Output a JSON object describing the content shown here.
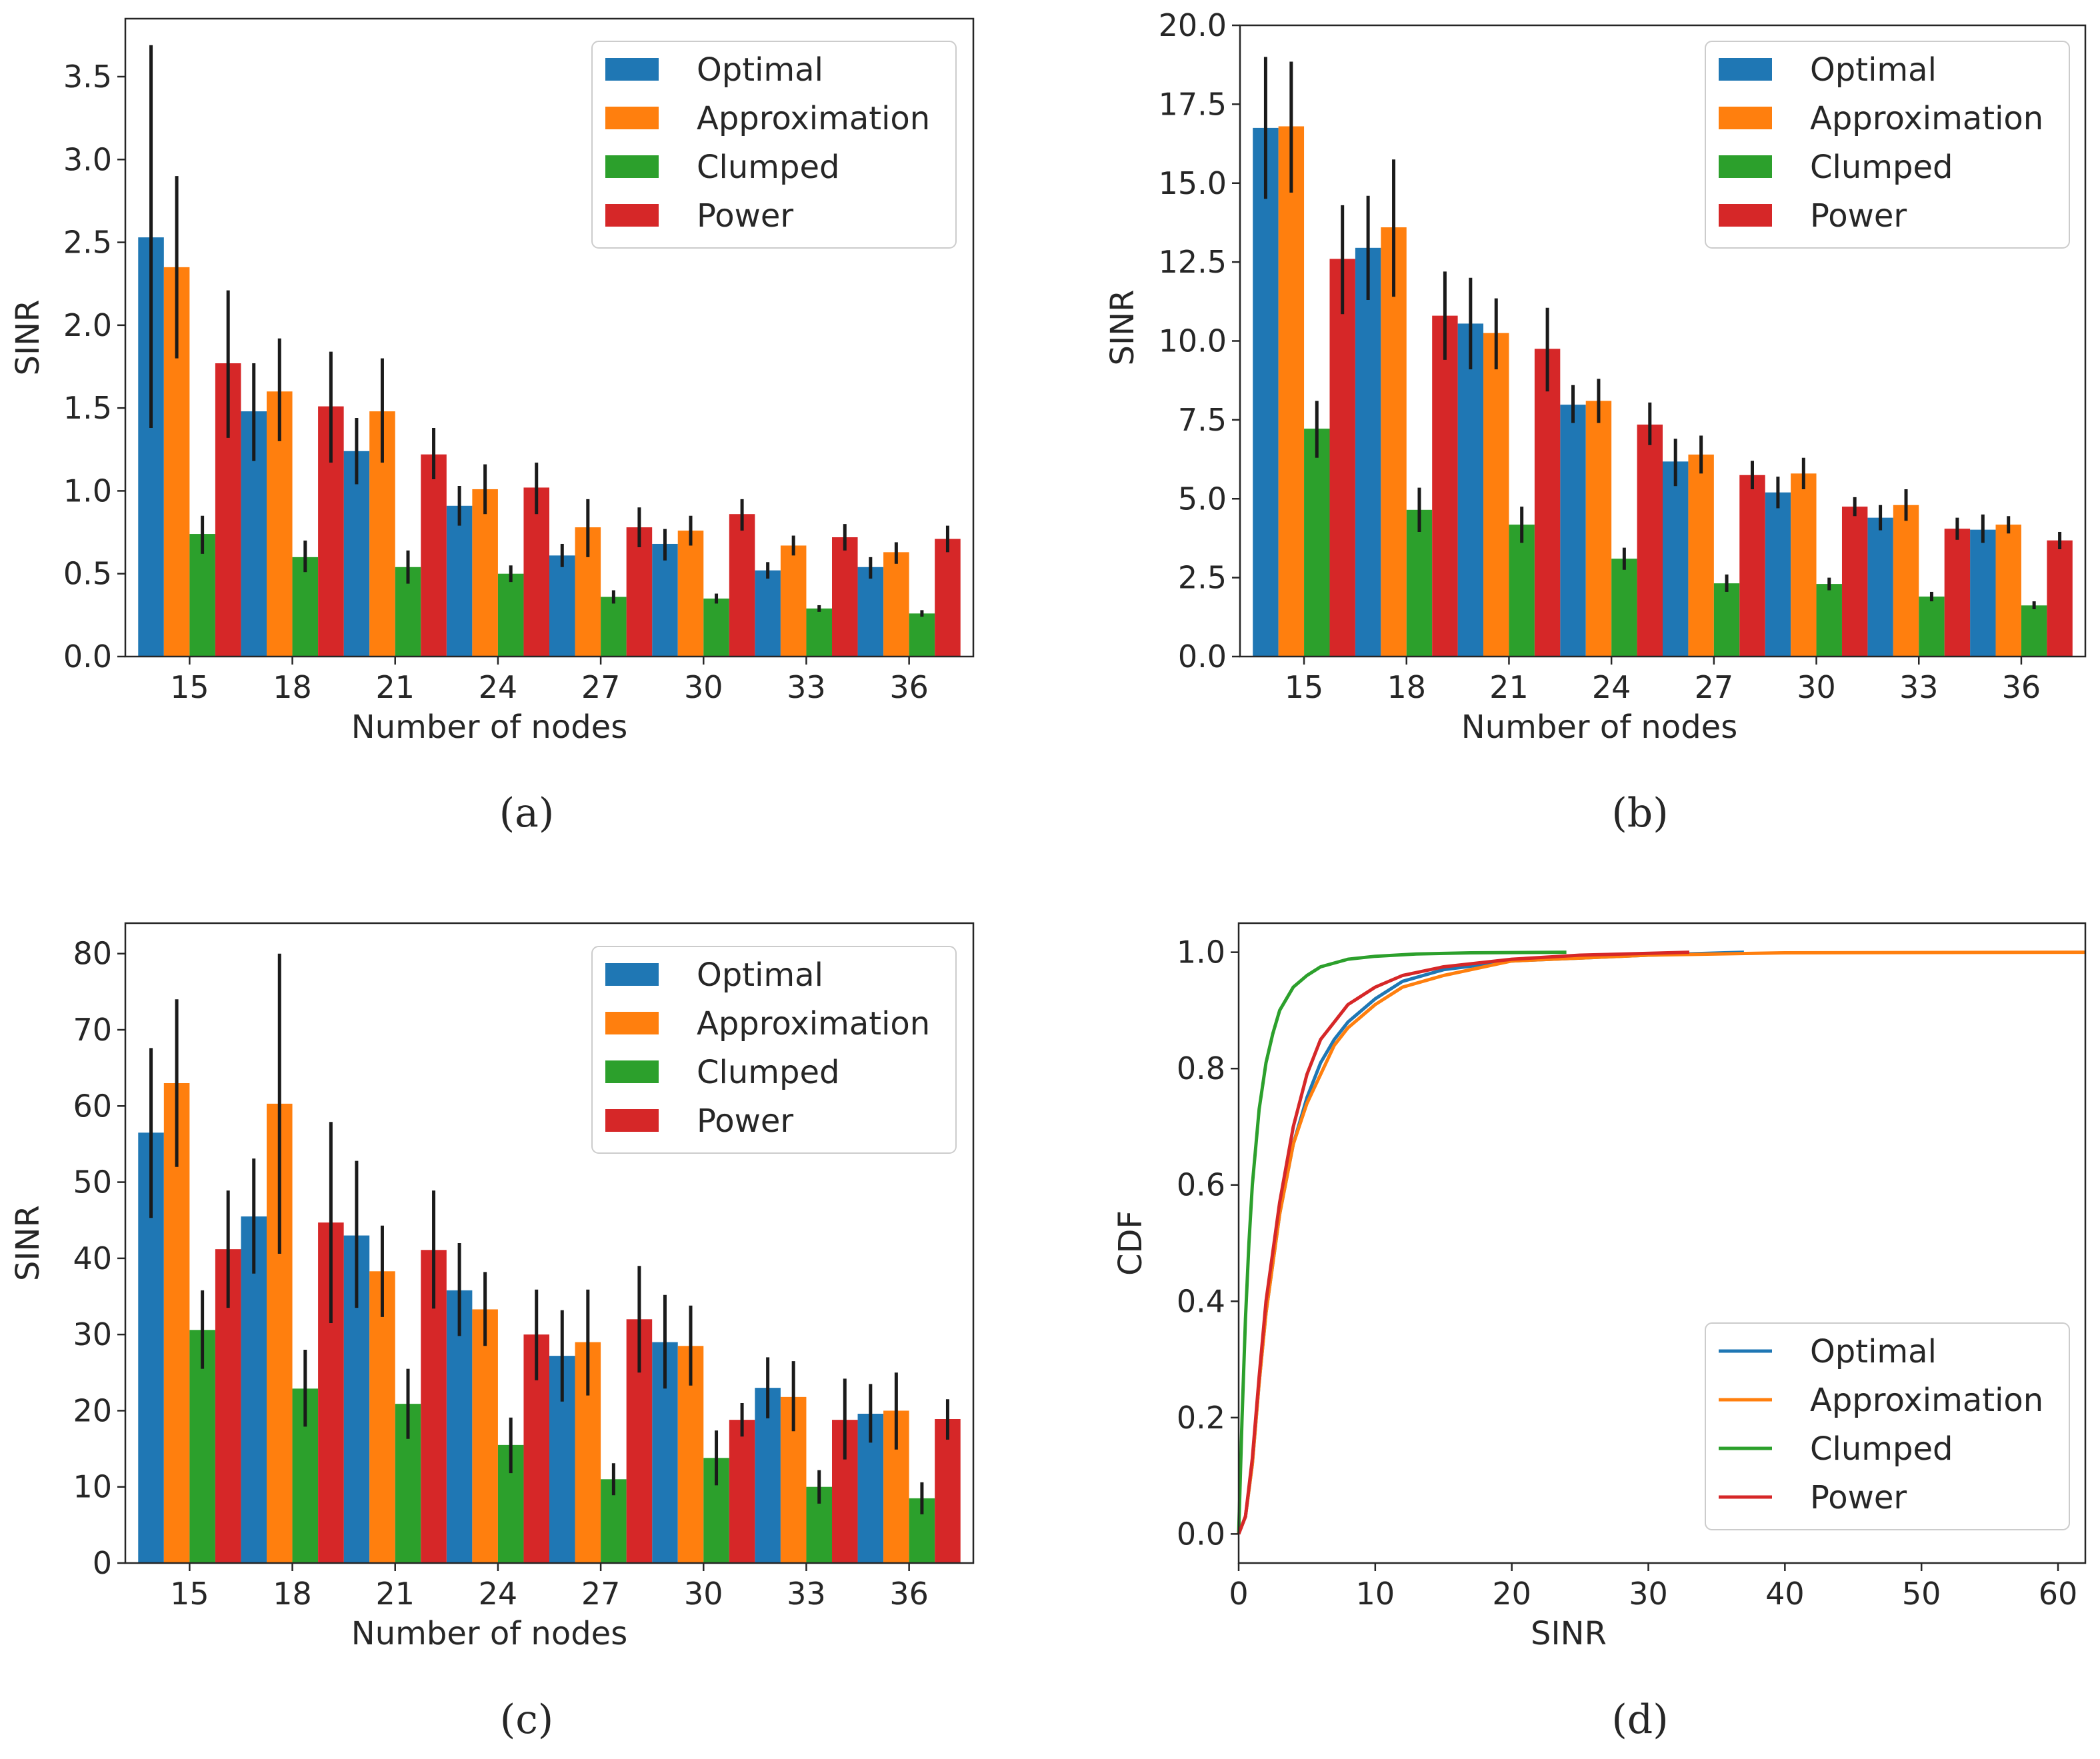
{
  "figure": {
    "captions": [
      "(a)",
      "(b)",
      "(c)",
      "(d)"
    ]
  },
  "colors": {
    "Optimal": "#1f77b4",
    "Approximation": "#ff7f0e",
    "Clumped": "#2ca02c",
    "Power": "#d62728",
    "errorbar": "#1a1a1a",
    "axis": "#262626"
  },
  "chart_data": [
    {
      "id": "a",
      "type": "bar",
      "caption": "(a)",
      "xlabel": "Number of nodes",
      "ylabel": "SINR",
      "categories": [
        "15",
        "18",
        "21",
        "24",
        "27",
        "30",
        "33",
        "36"
      ],
      "ylim": [
        0,
        3.85
      ],
      "yticks": [
        0.0,
        0.5,
        1.0,
        1.5,
        2.0,
        2.5,
        3.0,
        3.5
      ],
      "ytick_labels": [
        "0.0",
        "0.5",
        "1.0",
        "1.5",
        "2.0",
        "2.5",
        "3.0",
        "3.5"
      ],
      "legend": [
        "Optimal",
        "Approximation",
        "Clumped",
        "Power"
      ],
      "legend_position": "top-right",
      "series": [
        {
          "name": "Optimal",
          "values": [
            2.53,
            1.48,
            1.24,
            0.91,
            0.61,
            0.68,
            0.52,
            0.54
          ],
          "err_low": [
            1.38,
            1.18,
            1.04,
            0.79,
            0.54,
            0.58,
            0.47,
            0.47
          ],
          "err_high": [
            3.69,
            1.77,
            1.44,
            1.03,
            0.68,
            0.77,
            0.57,
            0.6
          ]
        },
        {
          "name": "Approximation",
          "values": [
            2.35,
            1.6,
            1.48,
            1.01,
            0.78,
            0.76,
            0.67,
            0.63
          ],
          "err_low": [
            1.8,
            1.3,
            1.17,
            0.86,
            0.6,
            0.67,
            0.61,
            0.56
          ],
          "err_high": [
            2.9,
            1.92,
            1.8,
            1.16,
            0.95,
            0.85,
            0.73,
            0.69
          ]
        },
        {
          "name": "Clumped",
          "values": [
            0.74,
            0.6,
            0.54,
            0.5,
            0.36,
            0.35,
            0.29,
            0.26
          ],
          "err_low": [
            0.62,
            0.51,
            0.44,
            0.45,
            0.32,
            0.32,
            0.27,
            0.24
          ],
          "err_high": [
            0.85,
            0.7,
            0.64,
            0.55,
            0.4,
            0.38,
            0.31,
            0.28
          ]
        },
        {
          "name": "Power",
          "values": [
            1.77,
            1.51,
            1.22,
            1.02,
            0.78,
            0.86,
            0.72,
            0.71
          ],
          "err_low": [
            1.32,
            1.17,
            1.07,
            0.86,
            0.66,
            0.76,
            0.64,
            0.63
          ],
          "err_high": [
            2.21,
            1.84,
            1.38,
            1.17,
            0.9,
            0.95,
            0.8,
            0.79
          ]
        }
      ]
    },
    {
      "id": "b",
      "type": "bar",
      "caption": "(b)",
      "xlabel": "Number of nodes",
      "ylabel": "SINR",
      "categories": [
        "15",
        "18",
        "21",
        "24",
        "27",
        "30",
        "33",
        "36"
      ],
      "ylim": [
        0,
        20.0
      ],
      "yticks": [
        0.0,
        2.5,
        5.0,
        7.5,
        10.0,
        12.5,
        15.0,
        17.5,
        20.0
      ],
      "ytick_labels": [
        "0.0",
        "2.5",
        "5.0",
        "7.5",
        "10.0",
        "12.5",
        "15.0",
        "17.5",
        "20.0"
      ],
      "legend": [
        "Optimal",
        "Approximation",
        "Clumped",
        "Power"
      ],
      "legend_position": "top-right",
      "series": [
        {
          "name": "Optimal",
          "values": [
            16.75,
            12.95,
            10.55,
            7.98,
            6.18,
            5.2,
            4.4,
            4.02
          ],
          "err_low": [
            14.5,
            11.3,
            9.1,
            7.4,
            5.4,
            4.7,
            4.0,
            3.6
          ],
          "err_high": [
            19.0,
            14.6,
            12.0,
            8.6,
            6.9,
            5.7,
            4.8,
            4.5
          ]
        },
        {
          "name": "Approximation",
          "values": [
            16.8,
            13.6,
            10.25,
            8.1,
            6.4,
            5.8,
            4.8,
            4.18
          ],
          "err_low": [
            14.7,
            11.4,
            9.1,
            7.4,
            5.8,
            5.3,
            4.3,
            3.9
          ],
          "err_high": [
            18.85,
            15.75,
            11.35,
            8.8,
            7.0,
            6.3,
            5.3,
            4.45
          ]
        },
        {
          "name": "Clumped",
          "values": [
            7.22,
            4.65,
            4.18,
            3.1,
            2.32,
            2.3,
            1.9,
            1.62
          ],
          "err_low": [
            6.3,
            3.95,
            3.6,
            2.75,
            2.05,
            2.1,
            1.75,
            1.5
          ],
          "err_high": [
            8.1,
            5.35,
            4.75,
            3.45,
            2.6,
            2.5,
            2.05,
            1.75
          ]
        },
        {
          "name": "Power",
          "values": [
            12.6,
            10.8,
            9.75,
            7.35,
            5.75,
            4.75,
            4.05,
            3.68
          ],
          "err_low": [
            10.85,
            9.4,
            8.4,
            6.7,
            5.3,
            4.45,
            3.7,
            3.4
          ],
          "err_high": [
            14.3,
            12.2,
            11.05,
            8.05,
            6.2,
            5.05,
            4.4,
            3.95
          ]
        }
      ]
    },
    {
      "id": "c",
      "type": "bar",
      "caption": "(c)",
      "xlabel": "Number of nodes",
      "ylabel": "SINR",
      "categories": [
        "15",
        "18",
        "21",
        "24",
        "27",
        "30",
        "33",
        "36"
      ],
      "ylim": [
        0,
        84
      ],
      "yticks": [
        0,
        10,
        20,
        30,
        40,
        50,
        60,
        70,
        80
      ],
      "ytick_labels": [
        "0",
        "10",
        "20",
        "30",
        "40",
        "50",
        "60",
        "70",
        "80"
      ],
      "legend": [
        "Optimal",
        "Approximation",
        "Clumped",
        "Power"
      ],
      "legend_position": "top-right",
      "series": [
        {
          "name": "Optimal",
          "values": [
            56.5,
            45.5,
            43.0,
            35.8,
            27.2,
            29.0,
            23.0,
            19.6
          ],
          "err_low": [
            45.3,
            38.0,
            33.5,
            29.8,
            21.2,
            22.9,
            19.0,
            15.8
          ],
          "err_high": [
            67.6,
            53.1,
            52.8,
            42.0,
            33.2,
            35.2,
            27.0,
            23.5
          ]
        },
        {
          "name": "Approximation",
          "values": [
            63.0,
            60.3,
            38.3,
            33.3,
            29.0,
            28.5,
            21.8,
            20.0
          ],
          "err_low": [
            52.0,
            40.6,
            32.3,
            28.5,
            22.0,
            23.3,
            17.3,
            14.9
          ],
          "err_high": [
            74.0,
            80.0,
            44.3,
            38.2,
            35.9,
            33.8,
            26.5,
            25.0
          ]
        },
        {
          "name": "Clumped",
          "values": [
            30.6,
            22.9,
            20.9,
            15.5,
            11.0,
            13.8,
            10.0,
            8.5
          ],
          "err_low": [
            25.5,
            17.9,
            16.3,
            11.8,
            8.9,
            10.2,
            7.8,
            6.4
          ],
          "err_high": [
            35.8,
            28.0,
            25.5,
            19.1,
            13.1,
            17.4,
            12.2,
            10.6
          ]
        },
        {
          "name": "Power",
          "values": [
            41.2,
            44.7,
            41.1,
            30.0,
            32.0,
            18.8,
            18.8,
            18.9
          ],
          "err_low": [
            33.5,
            31.5,
            33.4,
            24.0,
            25.0,
            16.6,
            13.6,
            16.2
          ],
          "err_high": [
            48.9,
            57.9,
            48.9,
            35.9,
            39.0,
            21.0,
            24.2,
            21.5
          ]
        }
      ]
    },
    {
      "id": "d",
      "type": "line",
      "caption": "(d)",
      "xlabel": "SINR",
      "ylabel": "CDF",
      "xlim": [
        0,
        62
      ],
      "ylim": [
        -0.05,
        1.05
      ],
      "xticks": [
        0,
        10,
        20,
        30,
        40,
        50,
        60
      ],
      "xtick_labels": [
        "0",
        "10",
        "20",
        "30",
        "40",
        "50",
        "60"
      ],
      "yticks": [
        0.0,
        0.2,
        0.4,
        0.6,
        0.8,
        1.0
      ],
      "ytick_labels": [
        "0.0",
        "0.2",
        "0.4",
        "0.6",
        "0.8",
        "1.0"
      ],
      "legend": [
        "Optimal",
        "Approximation",
        "Clumped",
        "Power"
      ],
      "legend_position": "bottom-right",
      "series": [
        {
          "name": "Optimal",
          "x": [
            0.0,
            0.5,
            1.0,
            1.5,
            2.0,
            3.0,
            4.0,
            5.0,
            6.0,
            7.0,
            8.0,
            10.0,
            12.0,
            15.0,
            20.0,
            25.0,
            30.0,
            37.0
          ],
          "y": [
            0.0,
            0.03,
            0.12,
            0.26,
            0.38,
            0.55,
            0.67,
            0.75,
            0.81,
            0.85,
            0.88,
            0.92,
            0.95,
            0.97,
            0.985,
            0.99,
            0.995,
            1.0
          ]
        },
        {
          "name": "Approximation",
          "x": [
            0.0,
            0.5,
            1.0,
            1.5,
            2.0,
            3.0,
            4.0,
            5.0,
            6.0,
            7.0,
            8.0,
            10.0,
            12.0,
            15.0,
            20.0,
            25.0,
            30.0,
            40.0,
            62.0
          ],
          "y": [
            0.0,
            0.03,
            0.12,
            0.26,
            0.38,
            0.55,
            0.67,
            0.74,
            0.79,
            0.84,
            0.87,
            0.91,
            0.94,
            0.96,
            0.985,
            0.99,
            0.995,
            0.999,
            1.0
          ]
        },
        {
          "name": "Clumped",
          "x": [
            0.0,
            0.25,
            0.5,
            0.75,
            1.0,
            1.5,
            2.0,
            2.5,
            3.0,
            4.0,
            5.0,
            6.0,
            8.0,
            10.0,
            13.0,
            17.0,
            24.0
          ],
          "y": [
            0.0,
            0.2,
            0.37,
            0.5,
            0.6,
            0.73,
            0.81,
            0.86,
            0.9,
            0.94,
            0.96,
            0.975,
            0.988,
            0.993,
            0.997,
            0.999,
            1.0
          ]
        },
        {
          "name": "Power",
          "x": [
            0.0,
            0.5,
            1.0,
            1.5,
            2.0,
            3.0,
            4.0,
            5.0,
            6.0,
            7.0,
            8.0,
            10.0,
            12.0,
            15.0,
            20.0,
            25.0,
            33.0
          ],
          "y": [
            0.0,
            0.03,
            0.13,
            0.27,
            0.4,
            0.57,
            0.7,
            0.79,
            0.85,
            0.88,
            0.91,
            0.94,
            0.96,
            0.975,
            0.988,
            0.995,
            1.0
          ]
        }
      ]
    }
  ]
}
